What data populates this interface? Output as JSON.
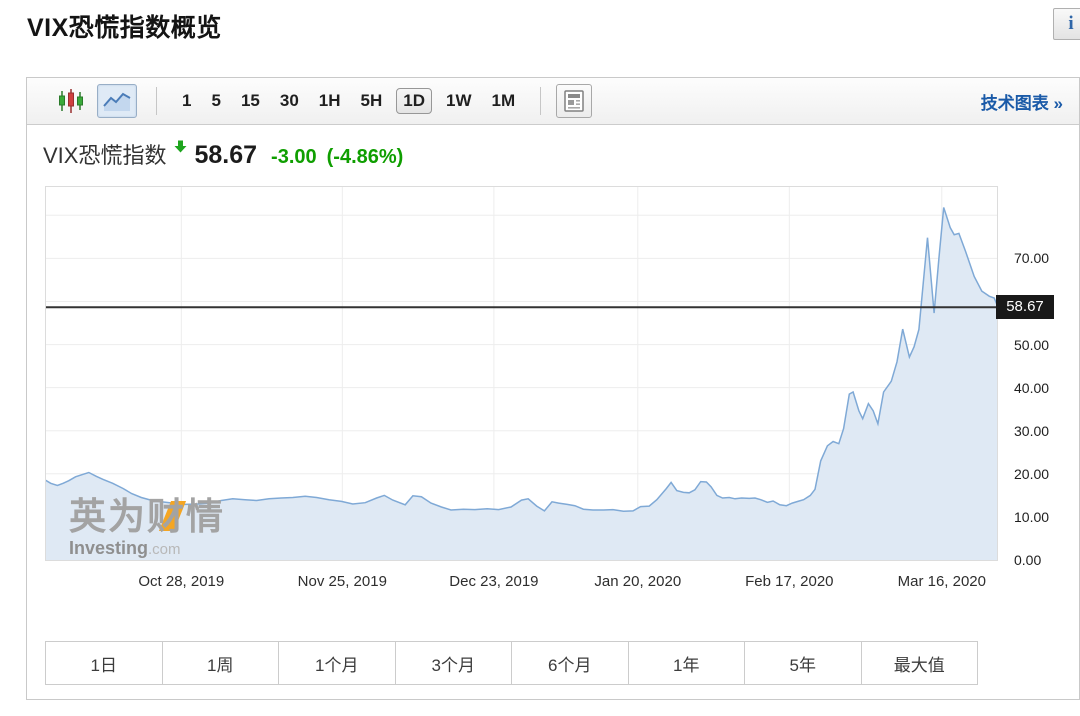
{
  "page": {
    "title": "VIX恐慌指数概览",
    "info_icon": "i"
  },
  "toolbar": {
    "chart_type_buttons": [
      {
        "name": "candlestick-chart",
        "selected": false
      },
      {
        "name": "line-chart",
        "selected": true
      }
    ],
    "intervals": [
      "1",
      "5",
      "15",
      "30",
      "1H",
      "5H",
      "1D",
      "1W",
      "1M"
    ],
    "selected_interval": "1D",
    "news_button": "news-panel",
    "link_label": "技术图表",
    "link_arrow": "»"
  },
  "quote": {
    "name": "VIX恐慌指数",
    "direction": "down",
    "price": "58.67",
    "change": "-3.00",
    "change_pct": "(-4.86%)"
  },
  "watermark": {
    "cn": "英为财情",
    "en": "Investing",
    "domain": ".com"
  },
  "ranges": [
    "1日",
    "1周",
    "1个月",
    "3个月",
    "6个月",
    "1年",
    "5年",
    "最大值"
  ],
  "chart_data": {
    "type": "area",
    "series_name": "VIX恐慌指数",
    "last_price": 58.67,
    "ylim": [
      0,
      86.8
    ],
    "grid": true,
    "yticks": [
      {
        "v": 0,
        "label": "0.00"
      },
      {
        "v": 10,
        "label": "10.00"
      },
      {
        "v": 20,
        "label": "20.00"
      },
      {
        "v": 30,
        "label": "30.00"
      },
      {
        "v": 40,
        "label": "40.00"
      },
      {
        "v": 50,
        "label": "50.00"
      },
      {
        "v": 60,
        "label": "60.00"
      },
      {
        "v": 70,
        "label": "70.00"
      }
    ],
    "grid_values": [
      10,
      20,
      30,
      40,
      50,
      60,
      70,
      80
    ],
    "xticks": [
      {
        "f": 0.143,
        "label": "Oct 28, 2019"
      },
      {
        "f": 0.312,
        "label": "Nov 25, 2019"
      },
      {
        "f": 0.471,
        "label": "Dec 23, 2019"
      },
      {
        "f": 0.622,
        "label": "Jan 20, 2020"
      },
      {
        "f": 0.781,
        "label": "Feb 17, 2020"
      },
      {
        "f": 0.941,
        "label": "Mar 16, 2020"
      }
    ],
    "points": [
      [
        0.0,
        18.6
      ],
      [
        0.006,
        17.8
      ],
      [
        0.013,
        17.3
      ],
      [
        0.019,
        17.8
      ],
      [
        0.025,
        18.4
      ],
      [
        0.032,
        19.3
      ],
      [
        0.04,
        19.9
      ],
      [
        0.046,
        20.3
      ],
      [
        0.054,
        19.4
      ],
      [
        0.061,
        18.7
      ],
      [
        0.071,
        17.8
      ],
      [
        0.082,
        16.6
      ],
      [
        0.091,
        15.4
      ],
      [
        0.101,
        14.5
      ],
      [
        0.111,
        13.9
      ],
      [
        0.122,
        13.5
      ],
      [
        0.134,
        13.2
      ],
      [
        0.147,
        12.9
      ],
      [
        0.16,
        13.0
      ],
      [
        0.172,
        13.2
      ],
      [
        0.185,
        13.8
      ],
      [
        0.197,
        14.2
      ],
      [
        0.21,
        14.0
      ],
      [
        0.222,
        13.8
      ],
      [
        0.235,
        14.2
      ],
      [
        0.248,
        14.4
      ],
      [
        0.26,
        14.5
      ],
      [
        0.273,
        14.8
      ],
      [
        0.285,
        14.5
      ],
      [
        0.298,
        14.0
      ],
      [
        0.311,
        13.6
      ],
      [
        0.323,
        13.0
      ],
      [
        0.336,
        13.3
      ],
      [
        0.348,
        14.4
      ],
      [
        0.356,
        15.0
      ],
      [
        0.365,
        13.9
      ],
      [
        0.378,
        12.8
      ],
      [
        0.386,
        14.9
      ],
      [
        0.395,
        14.7
      ],
      [
        0.405,
        13.2
      ],
      [
        0.416,
        12.3
      ],
      [
        0.426,
        11.6
      ],
      [
        0.439,
        11.8
      ],
      [
        0.451,
        11.7
      ],
      [
        0.464,
        11.9
      ],
      [
        0.476,
        11.7
      ],
      [
        0.489,
        12.3
      ],
      [
        0.5,
        13.9
      ],
      [
        0.507,
        14.2
      ],
      [
        0.516,
        12.5
      ],
      [
        0.524,
        11.4
      ],
      [
        0.532,
        13.5
      ],
      [
        0.539,
        13.2
      ],
      [
        0.548,
        12.9
      ],
      [
        0.556,
        12.6
      ],
      [
        0.565,
        11.8
      ],
      [
        0.575,
        11.6
      ],
      [
        0.586,
        11.6
      ],
      [
        0.596,
        11.7
      ],
      [
        0.607,
        11.3
      ],
      [
        0.617,
        11.4
      ],
      [
        0.625,
        12.4
      ],
      [
        0.634,
        12.5
      ],
      [
        0.642,
        14.0
      ],
      [
        0.652,
        16.6
      ],
      [
        0.657,
        18.0
      ],
      [
        0.663,
        16.1
      ],
      [
        0.67,
        15.7
      ],
      [
        0.676,
        15.6
      ],
      [
        0.682,
        16.3
      ],
      [
        0.688,
        18.2
      ],
      [
        0.694,
        18.1
      ],
      [
        0.699,
        17.0
      ],
      [
        0.705,
        15.0
      ],
      [
        0.711,
        14.4
      ],
      [
        0.718,
        14.5
      ],
      [
        0.724,
        14.2
      ],
      [
        0.731,
        14.4
      ],
      [
        0.739,
        14.3
      ],
      [
        0.745,
        14.4
      ],
      [
        0.751,
        14.0
      ],
      [
        0.758,
        13.4
      ],
      [
        0.764,
        13.7
      ],
      [
        0.771,
        12.8
      ],
      [
        0.778,
        12.6
      ],
      [
        0.784,
        13.2
      ],
      [
        0.79,
        13.6
      ],
      [
        0.796,
        14.0
      ],
      [
        0.803,
        15.0
      ],
      [
        0.808,
        16.4
      ],
      [
        0.814,
        23.0
      ],
      [
        0.821,
        26.5
      ],
      [
        0.827,
        27.5
      ],
      [
        0.833,
        27.0
      ],
      [
        0.838,
        30.5
      ],
      [
        0.844,
        38.5
      ],
      [
        0.848,
        39.0
      ],
      [
        0.854,
        34.6
      ],
      [
        0.858,
        32.8
      ],
      [
        0.864,
        36.3
      ],
      [
        0.869,
        34.6
      ],
      [
        0.874,
        31.6
      ],
      [
        0.88,
        39.0
      ],
      [
        0.888,
        41.5
      ],
      [
        0.894,
        46.0
      ],
      [
        0.9,
        53.6
      ],
      [
        0.907,
        47.1
      ],
      [
        0.912,
        49.5
      ],
      [
        0.917,
        53.5
      ],
      [
        0.926,
        74.8
      ],
      [
        0.933,
        57.3
      ],
      [
        0.938,
        70.0
      ],
      [
        0.943,
        81.8
      ],
      [
        0.95,
        77.1
      ],
      [
        0.954,
        75.5
      ],
      [
        0.959,
        75.8
      ],
      [
        0.966,
        71.6
      ],
      [
        0.975,
        65.8
      ],
      [
        0.983,
        62.4
      ],
      [
        0.991,
        61.2
      ],
      [
        0.996,
        60.8
      ],
      [
        1.0,
        58.67
      ]
    ],
    "colors": {
      "line": "#7fa9d6",
      "fill": "#dfe9f4",
      "grid": "#ededed",
      "plot_border": "#dcdcdc",
      "price_line": "#333333",
      "badge_bg": "#191919",
      "badge_text": "#ffffff",
      "change_green": "#0f9e00",
      "link_blue": "#1a5aa8"
    }
  }
}
